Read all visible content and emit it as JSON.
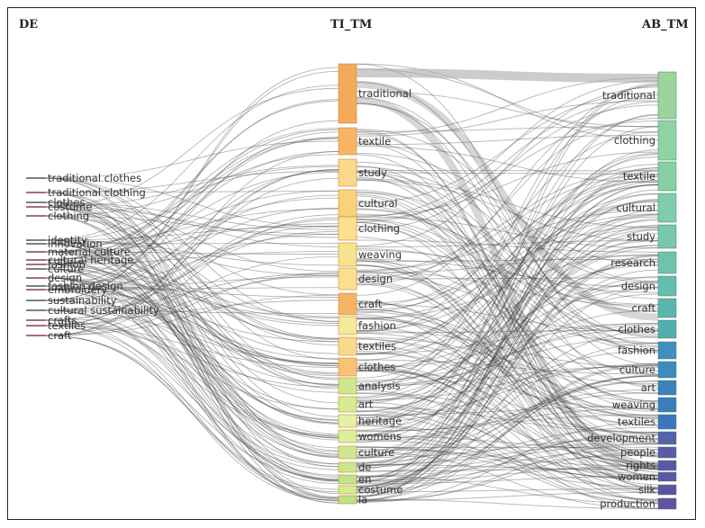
{
  "chart_data": {
    "type": "sankey",
    "columns": [
      "DE",
      "TI_TM",
      "AB_TM"
    ],
    "de_nodes": [
      "traditional clothes",
      "traditional clothing",
      "clothes",
      "costume",
      "clothing",
      "identity",
      "innovation",
      "material culture",
      "cultural heritage",
      "fashion",
      "culture",
      "design",
      "fashion design",
      "embroidery",
      "sustainability",
      "cultural sustainability",
      "crafts",
      "textiles",
      "craft"
    ],
    "ti_nodes": [
      "traditional",
      "textile",
      "study",
      "cultural",
      "clothing",
      "weaving",
      "design",
      "craft",
      "fashion",
      "textiles",
      "clothes",
      "analysis",
      "art",
      "heritage",
      "womens",
      "culture",
      "de",
      "en",
      "costume",
      "la"
    ],
    "ab_nodes": [
      "traditional",
      "clothing",
      "textile",
      "cultural",
      "study",
      "research",
      "design",
      "craft",
      "clothes",
      "fashion",
      "culture",
      "art",
      "weaving",
      "textiles",
      "development",
      "people",
      "rights",
      "women",
      "silk",
      "production"
    ],
    "ti_colors": [
      "#f5a95a",
      "#f7b464",
      "#fbd98a",
      "#fad27a",
      "#fbe08f",
      "#f4e38f",
      "#fbe08f",
      "#f7b464",
      "#f3ea9a",
      "#fbd98a",
      "#f9c373",
      "#cde98d",
      "#d5ec92",
      "#e4f2a2",
      "#dcef9a",
      "#cde98d",
      "#c8e78c",
      "#bfe48a",
      "#d5ec92",
      "#b9e185"
    ],
    "ab_colors": [
      "#9ad69c",
      "#8fd3a3",
      "#86d0a6",
      "#7fcda9",
      "#78c8ab",
      "#6fc3ac",
      "#64bdad",
      "#5ab6ad",
      "#52aeac",
      "#3f8fc1",
      "#3c8cc0",
      "#3a82bd",
      "#3b7ebc",
      "#3b78bb",
      "#5463aa",
      "#5a5aa6",
      "#5a58a6",
      "#5c57a5",
      "#5d52a3",
      "#6152a3"
    ]
  }
}
